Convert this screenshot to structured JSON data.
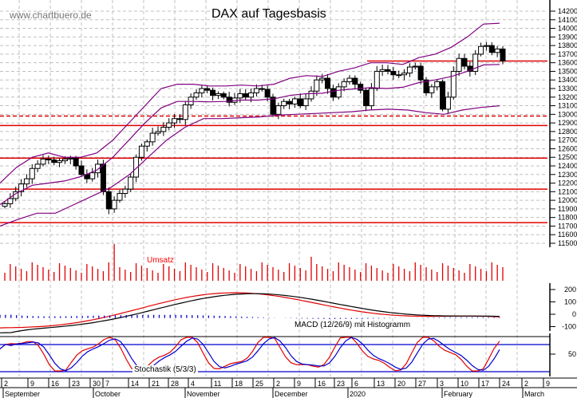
{
  "header": {
    "site": "www.chartbuero.de",
    "title": "DAX auf Tagesbasis"
  },
  "colors": {
    "grid": "#c0c0c0",
    "support": "#e00000",
    "bollinger": "#800080",
    "candle": "#000000",
    "volume": "#e00000",
    "macd_line": "#000000",
    "macd_signal": "#e00000",
    "macd_hist": "#0000d0",
    "stoch_k": "#e00000",
    "stoch_d": "#0000d0"
  },
  "labels": {
    "volume": "Umsatz",
    "macd": "MACD (12/26/9) mit Histogramm",
    "stoch": "Stochastik (5/3/3)"
  },
  "chart_data": [
    {
      "type": "candlestick",
      "title": "DAX auf Tagesbasis",
      "xlabel": "",
      "ylabel": "",
      "ylim": [
        11400,
        14300
      ],
      "y_ticks": [
        14200,
        14100,
        14000,
        13900,
        13800,
        13700,
        13600,
        13500,
        13400,
        13300,
        13200,
        13100,
        13000,
        12900,
        12800,
        12700,
        12600,
        12500,
        12400,
        12300,
        12200,
        12100,
        12000,
        11900,
        11800,
        11700,
        11600,
        11500
      ],
      "x_ticks": [
        "2",
        "9",
        "16",
        "23",
        "30",
        "7",
        "14",
        "21",
        "28",
        "4",
        "11",
        "18",
        "25",
        "2",
        "9",
        "16",
        "23",
        "6",
        "13",
        "20",
        "27",
        "3",
        "10",
        "17",
        "24",
        "2",
        "9"
      ],
      "x_months": [
        "September",
        "October",
        "November",
        "December",
        "2020",
        "February",
        "March"
      ],
      "horizontal_lines": [
        {
          "level": 13620,
          "style": "solid",
          "note": "short line at right"
        },
        {
          "level": 12980,
          "style": "dashed"
        },
        {
          "level": 12870,
          "style": "solid"
        },
        {
          "level": 12490,
          "style": "solid"
        },
        {
          "level": 12130,
          "style": "solid"
        },
        {
          "level": 11740,
          "style": "solid"
        }
      ],
      "close_approx": [
        11960,
        12020,
        12100,
        12190,
        12250,
        12370,
        12420,
        12480,
        12470,
        12440,
        12460,
        12480,
        12490,
        12400,
        12300,
        12250,
        12320,
        12420,
        12100,
        11900,
        12000,
        12080,
        12130,
        12270,
        12500,
        12630,
        12680,
        12780,
        12800,
        12850,
        12900,
        12950,
        12940,
        13110,
        13200,
        13250,
        13300,
        13280,
        13220,
        13240,
        13200,
        13140,
        13190,
        13240,
        13200,
        13250,
        13300,
        13290,
        13200,
        13000,
        13100,
        13150,
        13120,
        13180,
        13100,
        13180,
        13270,
        13400,
        13420,
        13300,
        13200,
        13320,
        13380,
        13420,
        13350,
        13280,
        13100,
        13300,
        13500,
        13520,
        13500,
        13460,
        13460,
        13480,
        13550,
        13560,
        13400,
        13250,
        13320,
        13380,
        13060,
        13200,
        13500,
        13650,
        13560,
        13500,
        13700,
        13790,
        13800,
        13720,
        13760,
        13620
      ],
      "bollinger_upper_approx": [
        12200,
        12380,
        12500,
        12550,
        12500,
        12500,
        12550,
        12700,
        12900,
        13100,
        13300,
        13350,
        13350,
        13330,
        13330,
        13340,
        13330,
        13350,
        13420,
        13450,
        13440,
        13500,
        13540,
        13600,
        13600,
        13580,
        13660,
        13700,
        13780,
        13900,
        14050,
        14060
      ],
      "bollinger_lower_approx": [
        11700,
        11780,
        11850,
        11850,
        11950,
        12050,
        12150,
        12300,
        12500,
        12700,
        12850,
        12950,
        12950,
        12960,
        12970,
        12990,
        13000,
        13010,
        13020,
        13030,
        13050,
        13060,
        13050,
        13020,
        13000,
        13050,
        13080,
        13100
      ]
    },
    {
      "type": "bar",
      "title": "Umsatz",
      "note": "daily volume bars, relative heights"
    },
    {
      "type": "line",
      "title": "MACD (12/26/9) mit Histogramm",
      "ylim": [
        -150,
        250
      ],
      "y_ticks": [
        200,
        100,
        0,
        -100
      ]
    },
    {
      "type": "line",
      "title": "Stochastik (5/3/3)",
      "ylim": [
        0,
        100
      ],
      "y_ticks": [
        50
      ]
    }
  ]
}
